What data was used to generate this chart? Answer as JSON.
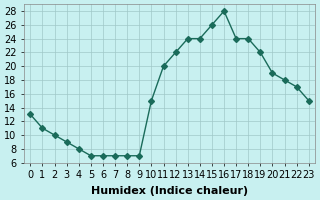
{
  "x": [
    0,
    1,
    2,
    3,
    4,
    5,
    6,
    7,
    8,
    9,
    10,
    11,
    12,
    13,
    14,
    15,
    16,
    17,
    18,
    19,
    20,
    21,
    22,
    23
  ],
  "y": [
    13,
    11,
    10,
    9,
    8,
    7,
    7,
    7,
    7,
    7,
    15,
    20,
    22,
    24,
    24,
    26,
    28,
    24,
    24,
    22,
    19,
    18,
    17,
    15
  ],
  "line_color": "#1a6b5a",
  "marker": "D",
  "marker_size": 3,
  "bg_color": "#c8f0f0",
  "grid_color": "#a0c8c8",
  "xlabel": "Humidex (Indice chaleur)",
  "title": "",
  "xlim": [
    -0.5,
    23.5
  ],
  "ylim": [
    6,
    29
  ],
  "yticks": [
    6,
    8,
    10,
    12,
    14,
    16,
    18,
    20,
    22,
    24,
    26,
    28
  ],
  "xticks": [
    0,
    1,
    2,
    3,
    4,
    5,
    6,
    7,
    8,
    9,
    10,
    11,
    12,
    13,
    14,
    15,
    16,
    17,
    18,
    19,
    20,
    21,
    22,
    23
  ],
  "xlabel_fontsize": 8,
  "tick_fontsize": 7
}
